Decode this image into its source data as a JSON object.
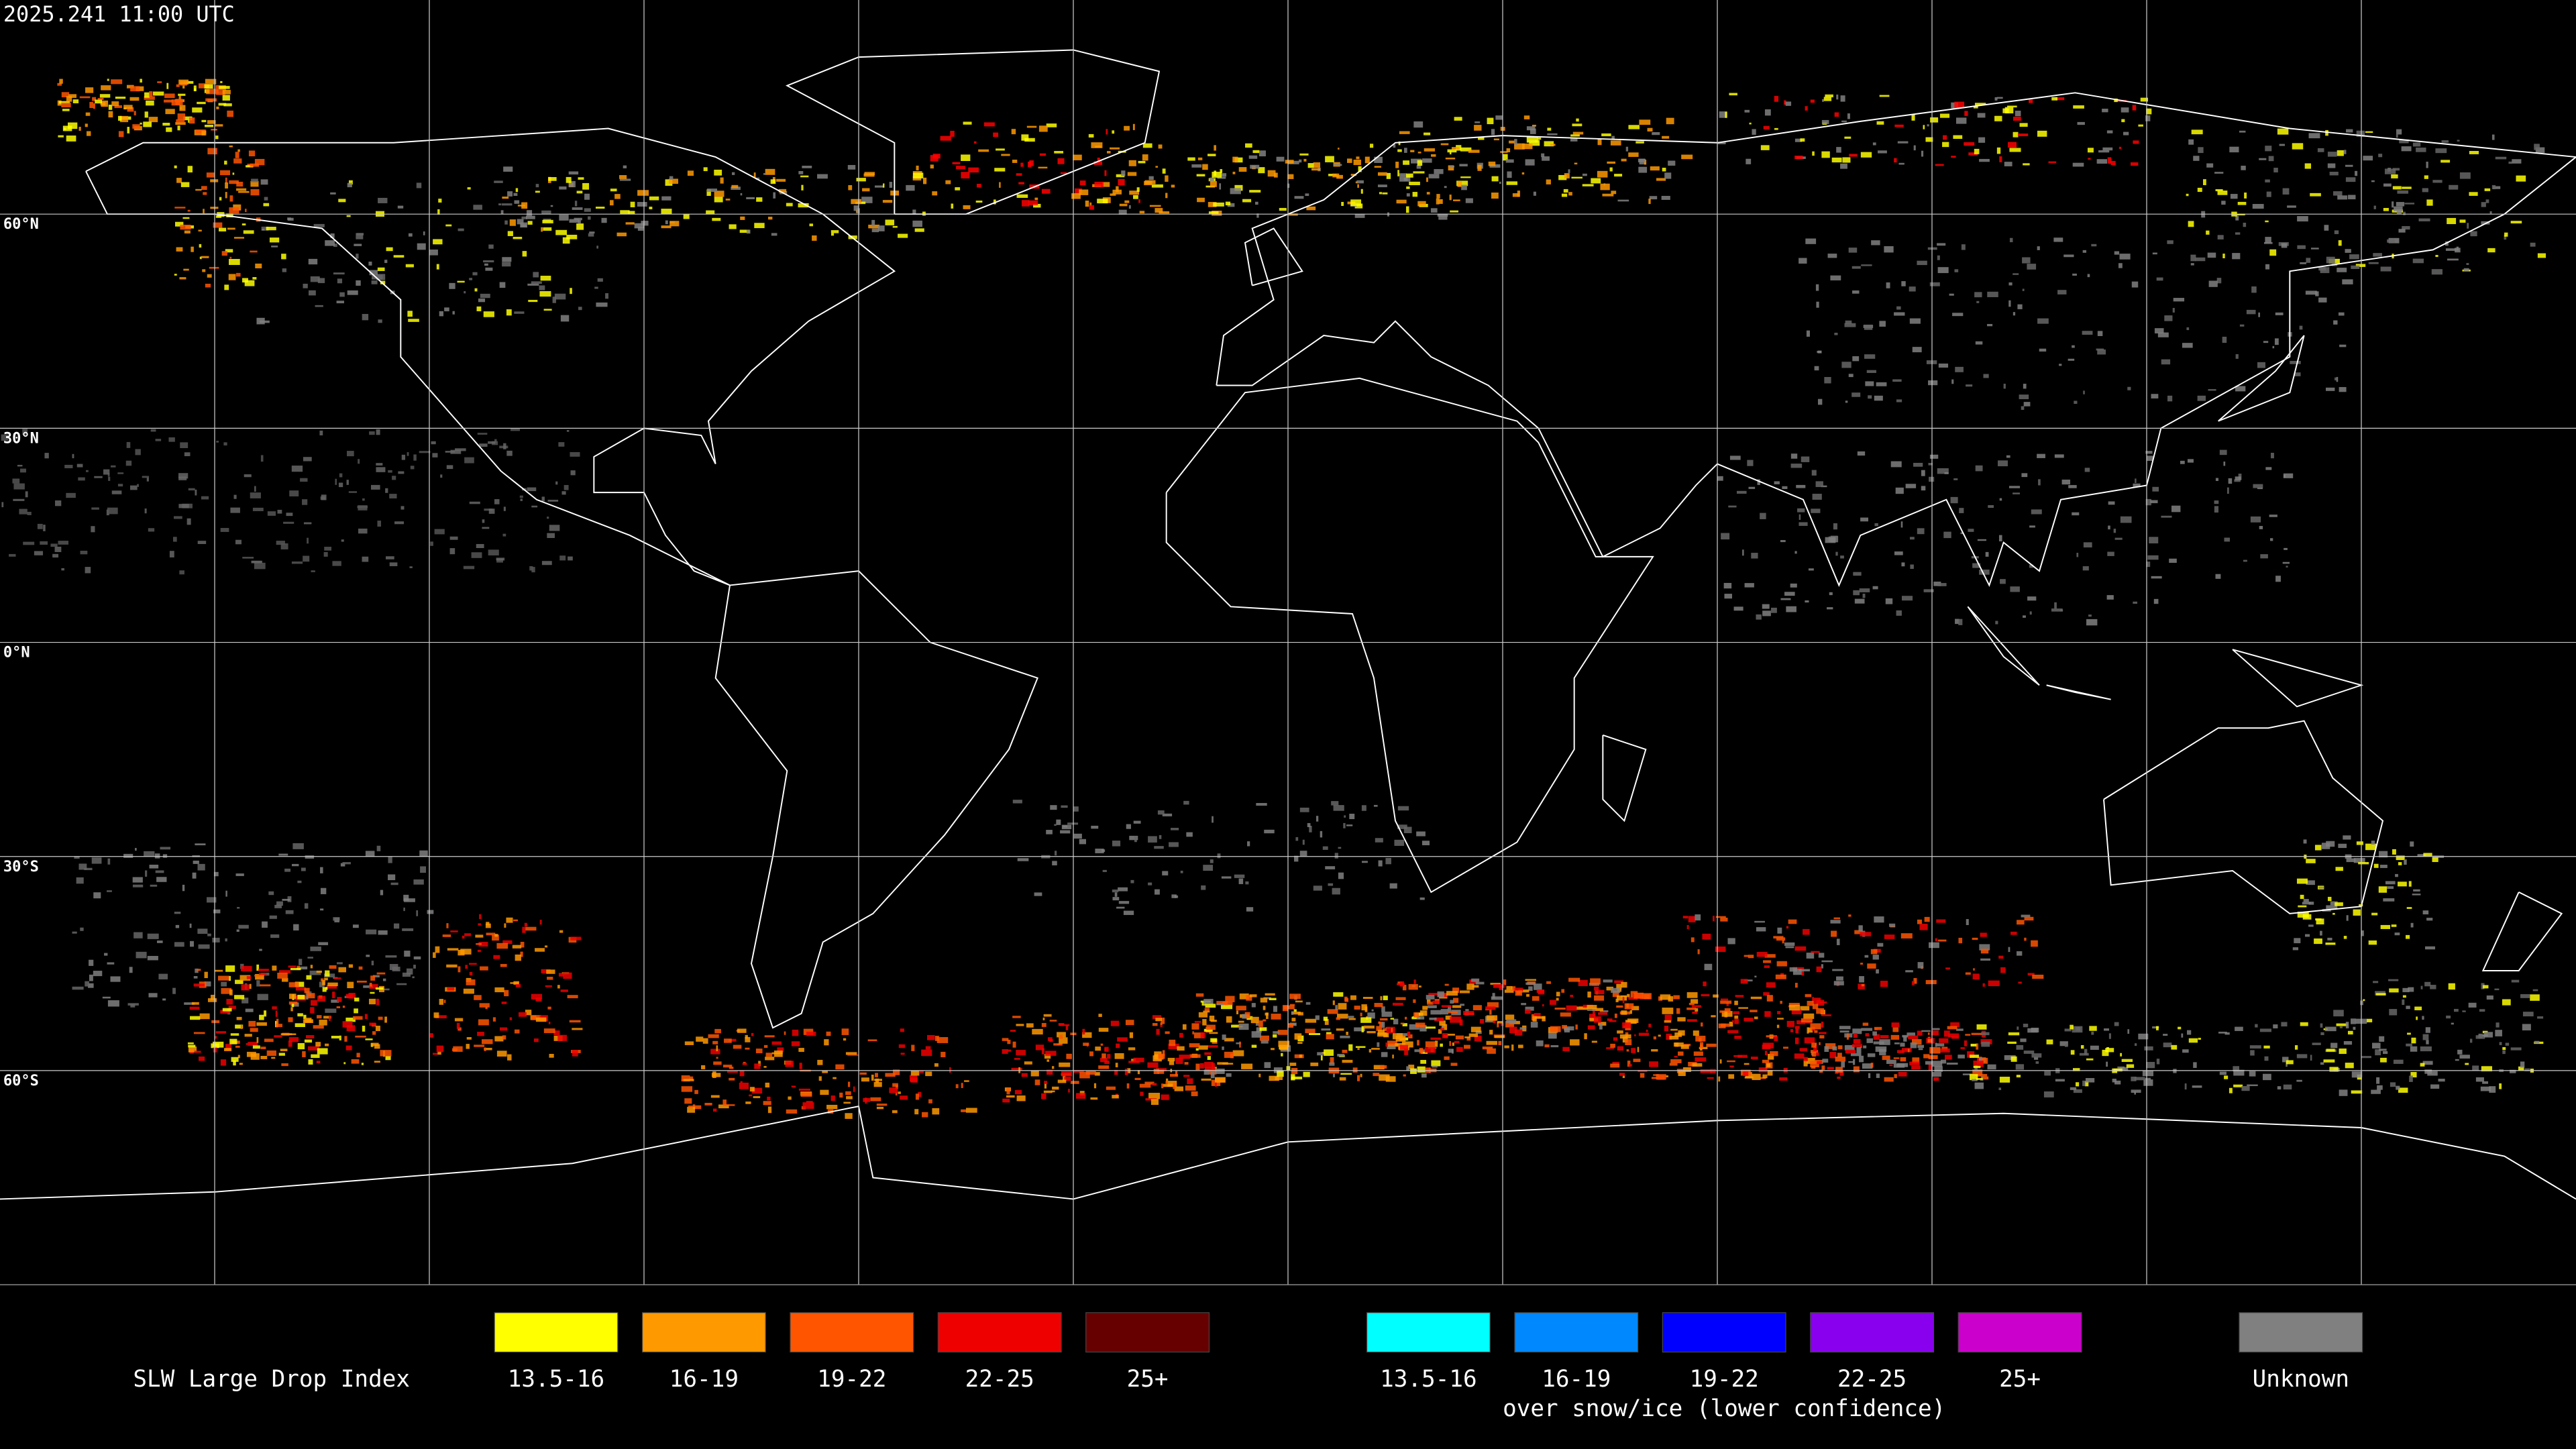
{
  "header": {
    "timestamp": "2025.241 11:00 UTC"
  },
  "map": {
    "latitude_labels": [
      "60°N",
      "30°N",
      "0°N",
      "30°S",
      "60°S"
    ]
  },
  "legend": {
    "title": "SLW Large Drop Index",
    "groups": [
      {
        "items": [
          {
            "label": "13.5-16",
            "color": "#ffff00"
          },
          {
            "label": "16-19",
            "color": "#ff9900"
          },
          {
            "label": "19-22",
            "color": "#ff5500"
          },
          {
            "label": "22-25",
            "color": "#ee0000"
          },
          {
            "label": "25+",
            "color": "#660000"
          }
        ]
      },
      {
        "items": [
          {
            "label": "13.5-16",
            "color": "#00ffff"
          },
          {
            "label": "16-19",
            "color": "#0088ff"
          },
          {
            "label": "19-22",
            "color": "#0000ff"
          },
          {
            "label": "22-25",
            "color": "#8800ee"
          },
          {
            "label": "25+",
            "color": "#cc00cc"
          }
        ],
        "caption": "over snow/ice (lower confidence)"
      },
      {
        "items": [
          {
            "label": "Unknown",
            "color": "#808080"
          }
        ]
      }
    ]
  }
}
